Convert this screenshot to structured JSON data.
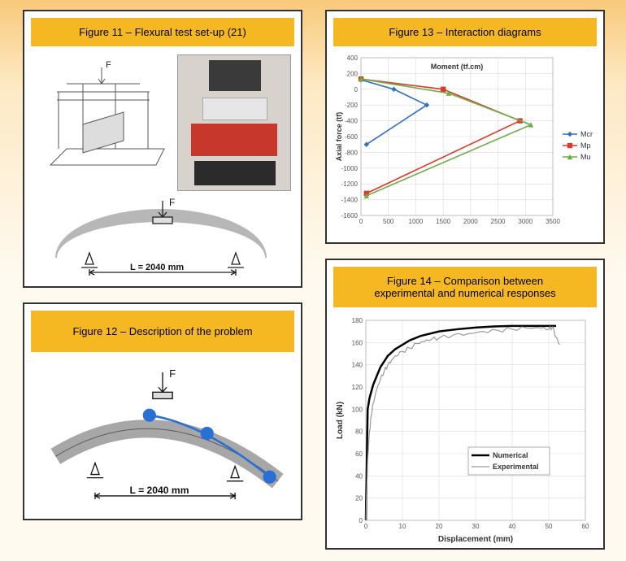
{
  "fig11": {
    "title": "Figure 11 – Flexural test set-up (21)",
    "force_label": "F",
    "span_label": "L = 2040 mm"
  },
  "fig12": {
    "title": "Figure 12 – Description of the problem",
    "force_label": "F",
    "span_label": "L = 2040 mm",
    "node_color": "#2a6fd6"
  },
  "fig13": {
    "title": "Figure 13 – Interaction diagrams",
    "type": "line",
    "xlabel": "Moment (tf.cm)",
    "ylabel": "Axial force (tf)",
    "xlim": [
      0,
      3500
    ],
    "ylim": [
      -1600,
      400
    ],
    "xtick_step": 500,
    "ytick_step": 200,
    "background_color": "#ffffff",
    "grid_color": "#d9d9d9",
    "title_fontsize": 10,
    "label_fontsize": 9,
    "series": [
      {
        "name": "Mcr",
        "color": "#2f6fc4",
        "marker": "diamond",
        "points": [
          [
            0,
            120
          ],
          [
            600,
            0
          ],
          [
            1200,
            -200
          ],
          [
            100,
            -700
          ]
        ]
      },
      {
        "name": "Mp",
        "color": "#d83a2b",
        "marker": "square",
        "points": [
          [
            0,
            130
          ],
          [
            1500,
            0
          ],
          [
            2900,
            -400
          ],
          [
            100,
            -1320
          ]
        ]
      },
      {
        "name": "Mu",
        "color": "#70ad47",
        "marker": "triangle",
        "points": [
          [
            0,
            130
          ],
          [
            1600,
            -50
          ],
          [
            3100,
            -450
          ],
          [
            100,
            -1350
          ]
        ]
      }
    ]
  },
  "fig14": {
    "title_line1": "Figure 14 – Comparison between",
    "title_line2": "experimental and numerical responses",
    "type": "line",
    "xlabel": "Displacement (mm)",
    "ylabel": "Load (kN)",
    "xlim": [
      0,
      60
    ],
    "ylim": [
      0,
      180
    ],
    "xtick_step": 10,
    "ytick_step": 20,
    "background_color": "#ffffff",
    "grid_color": "#d9d9d9",
    "title_fontsize": 13,
    "label_fontsize": 10,
    "series": [
      {
        "name": "Numerical",
        "color": "#000000",
        "line_width": 2.5,
        "points": [
          [
            0,
            0
          ],
          [
            0.5,
            100
          ],
          [
            1,
            110
          ],
          [
            2,
            122
          ],
          [
            3,
            130
          ],
          [
            4,
            138
          ],
          [
            6,
            148
          ],
          [
            8,
            154
          ],
          [
            10,
            158
          ],
          [
            12,
            162
          ],
          [
            15,
            166
          ],
          [
            20,
            170
          ],
          [
            25,
            172
          ],
          [
            30,
            173.5
          ],
          [
            35,
            174.5
          ],
          [
            40,
            175
          ],
          [
            45,
            175
          ],
          [
            50,
            175
          ],
          [
            52,
            175
          ]
        ]
      },
      {
        "name": "Experimental",
        "color": "#9a9a9a",
        "line_width": 1.2,
        "noisy": true,
        "points": [
          [
            0,
            0
          ],
          [
            0.5,
            55
          ],
          [
            1,
            80
          ],
          [
            1.5,
            95
          ],
          [
            2,
            105
          ],
          [
            3,
            118
          ],
          [
            4,
            127
          ],
          [
            5,
            134
          ],
          [
            6,
            140
          ],
          [
            7,
            144
          ],
          [
            8,
            148
          ],
          [
            10,
            152
          ],
          [
            12,
            155
          ],
          [
            14,
            159
          ],
          [
            16,
            161
          ],
          [
            18,
            163
          ],
          [
            20,
            164
          ],
          [
            24,
            167
          ],
          [
            28,
            168
          ],
          [
            32,
            170
          ],
          [
            36,
            171
          ],
          [
            40,
            172
          ],
          [
            44,
            173
          ],
          [
            48,
            173
          ],
          [
            50,
            172
          ],
          [
            51,
            174
          ],
          [
            52,
            165
          ],
          [
            53,
            158
          ]
        ]
      }
    ]
  }
}
